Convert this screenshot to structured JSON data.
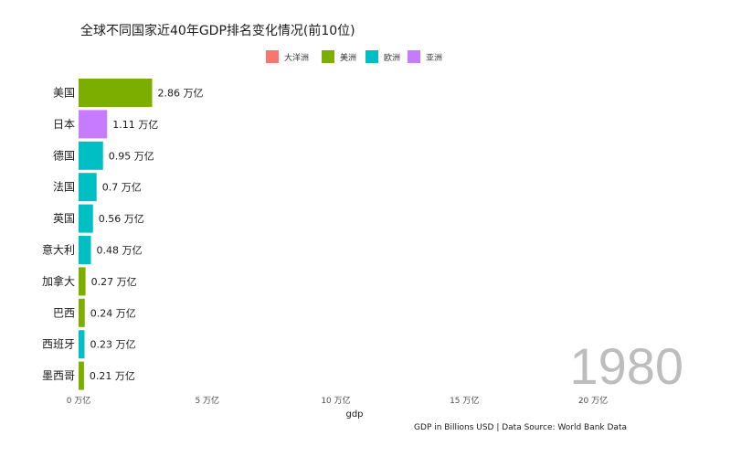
{
  "chart_data": {
    "type": "bar",
    "orientation": "horizontal",
    "title": "全球不同国家近40年GDP排名变化情况(前10位)",
    "legend": {
      "placement": "top-center",
      "entries": [
        {
          "name": "大洋洲",
          "color": "#F8766D"
        },
        {
          "name": "美洲",
          "color": "#7CAE00"
        },
        {
          "name": "欧洲",
          "color": "#00BFC4"
        },
        {
          "name": "亚洲",
          "color": "#C77CFF"
        }
      ]
    },
    "categories": [
      "美国",
      "日本",
      "德国",
      "法国",
      "英国",
      "意大利",
      "加拿大",
      "巴西",
      "西班牙",
      "墨西哥"
    ],
    "values": [
      2.86,
      1.11,
      0.95,
      0.7,
      0.56,
      0.48,
      0.27,
      0.24,
      0.23,
      0.21
    ],
    "value_labels": [
      "2.86 万亿",
      "1.11 万亿",
      "0.95 万亿",
      "0.7 万亿",
      "0.56 万亿",
      "0.48 万亿",
      "0.27 万亿",
      "0.24 万亿",
      "0.23 万亿",
      "0.21 万亿"
    ],
    "region": [
      "美洲",
      "亚洲",
      "欧洲",
      "欧洲",
      "欧洲",
      "欧洲",
      "美洲",
      "美洲",
      "欧洲",
      "美洲"
    ],
    "x_ticks": [
      0,
      5,
      10,
      15,
      20
    ],
    "x_tick_labels": [
      "0 万亿",
      "5 万亿",
      "10 万亿",
      "15 万亿",
      "20 万亿"
    ],
    "xlim": [
      0,
      20
    ],
    "xlabel": "gdp",
    "grid": false,
    "caption": "GDP in Billions USD | Data Source: World Bank Data",
    "year": "1980"
  }
}
